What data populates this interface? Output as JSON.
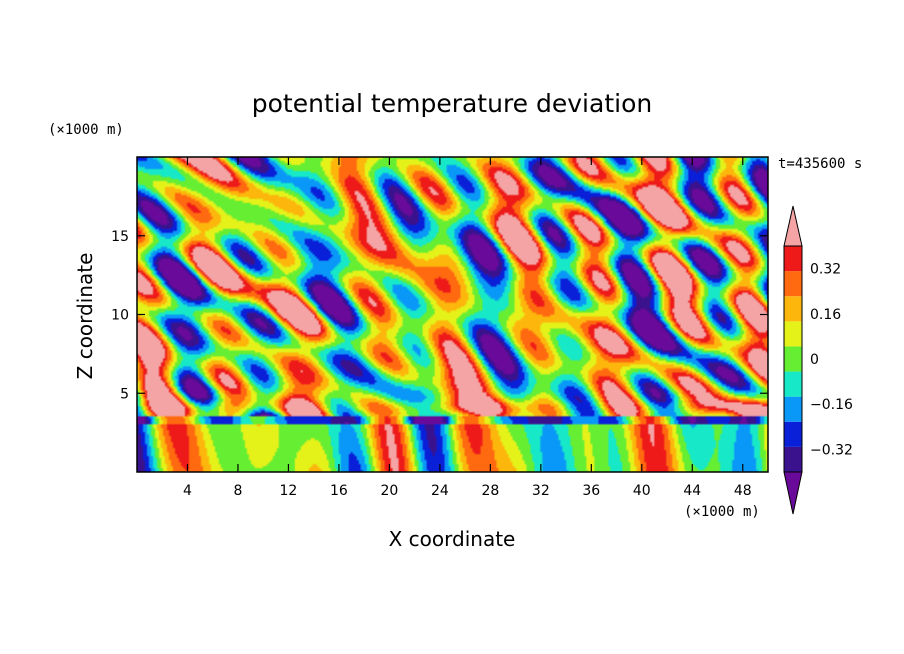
{
  "chart_data": {
    "type": "heatmap",
    "title": "potential temperature deviation",
    "xlabel": "X coordinate",
    "ylabel": "Z coordinate",
    "x_units": "(×1000 m)",
    "z_units": "(×1000 m)",
    "time_label": "t=435600 s",
    "xlim": [
      0,
      50
    ],
    "zlim": [
      0,
      20
    ],
    "xticks": [
      4,
      8,
      12,
      16,
      20,
      24,
      28,
      32,
      36,
      40,
      44,
      48
    ],
    "zticks": [
      5,
      10,
      15
    ],
    "colorbar": {
      "levels": [
        -0.4,
        -0.32,
        -0.24,
        -0.16,
        -0.08,
        0,
        0.08,
        0.16,
        0.24,
        0.32,
        0.4
      ],
      "tick_labels": [
        "0.32",
        "0.16",
        "0",
        "−0.16",
        "−0.32"
      ],
      "tick_values": [
        0.32,
        0.16,
        0,
        -0.16,
        -0.32
      ],
      "colors": [
        "#6a0a9a",
        "#3a128e",
        "#0a20d8",
        "#0a98f8",
        "#16e8c8",
        "#66ee33",
        "#e4f21a",
        "#fdb60c",
        "#ff6a10",
        "#ee1a1a",
        "#f4a4a4"
      ]
    }
  }
}
